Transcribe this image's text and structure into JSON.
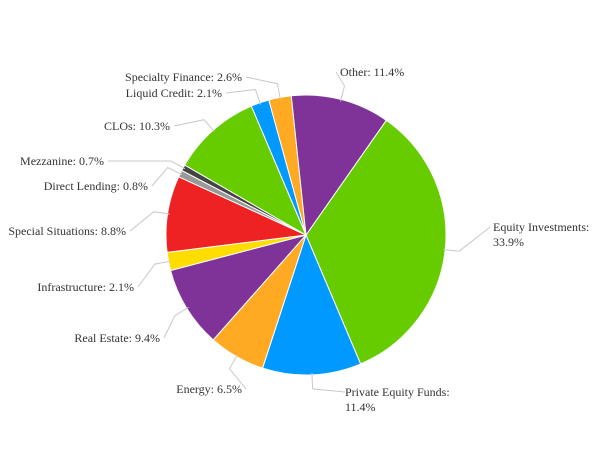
{
  "chart_data": {
    "type": "pie",
    "title": "",
    "start_angle_deg": 35,
    "direction": "clockwise",
    "slices": [
      {
        "label": "Equity Investments: 33.9%",
        "value": 33.9,
        "color": "#66cc00"
      },
      {
        "label": "Private Equity Funds: 11.4%",
        "value": 11.4,
        "color": "#0099ff"
      },
      {
        "label": "Energy: 6.5%",
        "value": 6.5,
        "color": "#ffaa22"
      },
      {
        "label": "Real Estate: 9.4%",
        "value": 9.4,
        "color": "#7f3399"
      },
      {
        "label": "Infrastructure: 2.1%",
        "value": 2.1,
        "color": "#ffdd00"
      },
      {
        "label": "Special Situations: 8.8%",
        "value": 8.8,
        "color": "#ee2222"
      },
      {
        "label": "Direct Lending: 0.8%",
        "value": 0.8,
        "color": "#999999"
      },
      {
        "label": "Mezzanine: 0.7%",
        "value": 0.7,
        "color": "#444444"
      },
      {
        "label": "CLOs: 10.3%",
        "value": 10.3,
        "color": "#66cc00"
      },
      {
        "label": "Liquid Credit: 2.1%",
        "value": 2.1,
        "color": "#0099ff"
      },
      {
        "label": "Specialty Finance: 2.6%",
        "value": 2.6,
        "color": "#ffaa22"
      },
      {
        "label": "Other: 11.4%",
        "value": 11.4,
        "color": "#7f3399"
      }
    ]
  }
}
